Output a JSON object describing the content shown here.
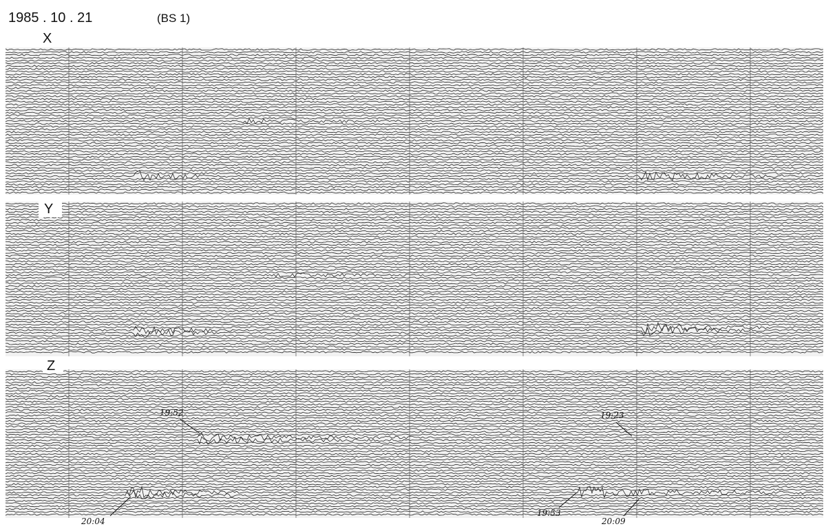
{
  "header": {
    "date": "1985 . 10 . 21",
    "station": "(BS 1)"
  },
  "panels": [
    {
      "label": "X"
    },
    {
      "label": "Y"
    },
    {
      "label": "Z"
    }
  ],
  "annotations": [
    "19:52",
    "19:23",
    "20:04",
    "19:53",
    "20:09"
  ]
}
